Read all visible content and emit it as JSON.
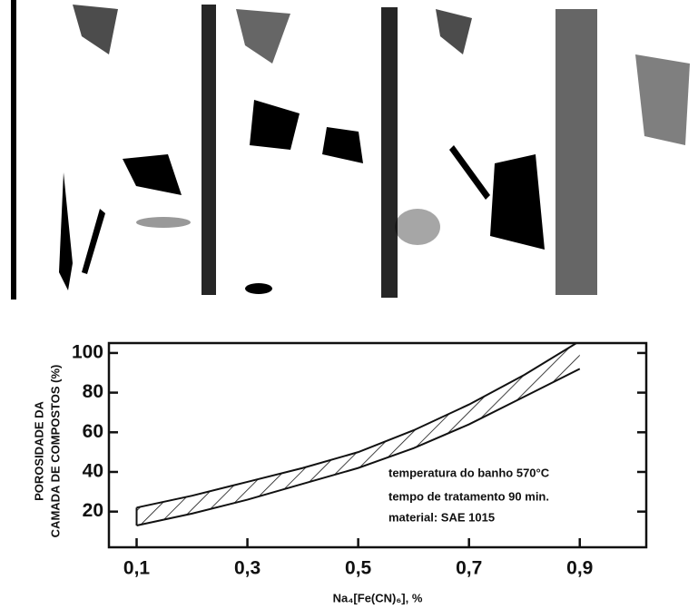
{
  "chart_data": {
    "type": "band",
    "x_label": "Na₄[Fe(CN)₆], %",
    "y_label": [
      "POROSIDADE DA",
      "CAMADA DE COMPOSTOS (%)"
    ],
    "annotations": [
      "temperatura do banho 570°C",
      "tempo de tratamento 90 min.",
      "material: SAE 1015"
    ],
    "x": [
      0.1,
      0.2,
      0.3,
      0.4,
      0.5,
      0.6,
      0.7,
      0.8,
      0.9
    ],
    "band": {
      "lower": [
        13,
        19,
        26,
        34,
        42,
        52,
        64,
        78,
        92
      ],
      "upper": [
        22,
        28,
        35,
        42,
        50,
        61,
        74,
        89,
        106
      ]
    },
    "color": "#111111",
    "xlim": [
      0.05,
      1.02
    ],
    "xticks": [
      {
        "value": 0.1,
        "label": "0,1"
      },
      {
        "value": 0.3,
        "label": "0,3"
      },
      {
        "value": 0.5,
        "label": "0,5"
      },
      {
        "value": 0.7,
        "label": "0,7"
      },
      {
        "value": 0.9,
        "label": "0,9"
      }
    ],
    "ylim": [
      2,
      105
    ],
    "yticks": [
      20,
      40,
      60,
      80,
      100
    ],
    "grid": false
  }
}
